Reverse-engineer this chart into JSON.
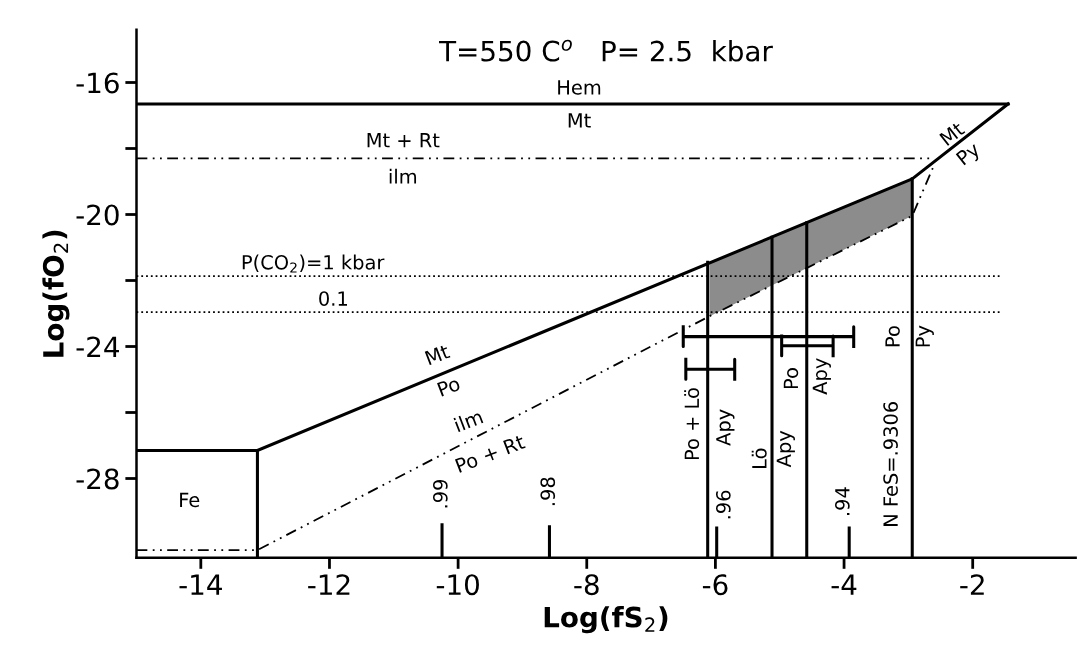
{
  "chart_data": {
    "type": "line",
    "title": "T=550 C$^{o}$   P= 2.5  kbar",
    "xlabel": "Log(fS$_{2}$)",
    "ylabel": "Log(fO$_{2}$)",
    "xlim": [
      -15,
      -0.4
    ],
    "ylim": [
      -30.4,
      -14.4
    ],
    "xticks": [
      -14,
      -12,
      -10,
      -8,
      -6,
      -4,
      -2
    ],
    "yticks": [
      -16,
      {
        "value": -18,
        "label": null
      },
      -20,
      {
        "value": -22,
        "label": null
      },
      -24,
      {
        "value": -26,
        "label": null
      },
      -28
    ],
    "grid": false,
    "legend": false,
    "series": [
      {
        "color": "#000000",
        "line_style": "solid",
        "x": [
          -15,
          -1.45
        ],
        "values": [
          -16.65,
          -16.65
        ]
      },
      {
        "color": "#000000",
        "line_style": "solid",
        "x": [
          -13.12,
          -2.94,
          -1.45
        ],
        "values": [
          -27.15,
          -18.92,
          -16.65
        ]
      },
      {
        "color": "#000000",
        "line_style": "solid",
        "x": [
          -15,
          -13.12,
          -13.12
        ],
        "values": [
          -27.15,
          -27.15,
          -30.4
        ]
      },
      {
        "color": "#000000",
        "line_style": "dashed",
        "x": [
          -15,
          -2.6
        ],
        "values": [
          -18.3,
          -18.3
        ]
      },
      {
        "color": "#000000",
        "line_style": "dashed",
        "x": [
          -15,
          -13.12,
          -6.09,
          -2.94,
          -2.6
        ],
        "values": [
          -30.17,
          -30.17,
          -23.08,
          -20.04,
          -18.5
        ],
        "lower": [
          null,
          null,
          -23.08,
          -20.04,
          null
        ],
        "upper": [
          null,
          null,
          -21.47,
          -18.92,
          null
        ]
      },
      {
        "color": "#000000",
        "line_style": "dotted",
        "x": [
          -15,
          -1.54
        ],
        "values": [
          -21.87,
          -21.87
        ]
      },
      {
        "color": "#000000",
        "line_style": "dotted",
        "x": [
          -15,
          -1.54
        ],
        "values": [
          -22.96,
          -22.96
        ]
      },
      {
        "color": "#000000",
        "line_style": "solid",
        "x": [
          -6.12,
          -6.12
        ],
        "values": [
          -30.4,
          -21.45
        ]
      },
      {
        "color": "#000000",
        "line_style": "solid",
        "x": [
          -5.12,
          -5.12
        ],
        "values": [
          -30.4,
          -20.69
        ]
      },
      {
        "color": "#000000",
        "line_style": "solid",
        "x": [
          -4.58,
          -4.58
        ],
        "values": [
          -30.4,
          -20.25
        ]
      },
      {
        "color": "#000000",
        "line_style": "solid",
        "x": [
          -2.94,
          -2.94
        ],
        "values": [
          -30.4,
          -18.92
        ]
      },
      {
        "color": "#000000",
        "line_style": "solid",
        "x": [
          -10.25,
          -10.25
        ],
        "values": [
          -30.4,
          -29.4
        ]
      },
      {
        "color": "#000000",
        "line_style": "solid",
        "x": [
          -8.58,
          -8.58
        ],
        "values": [
          -30.4,
          -29.46
        ]
      },
      {
        "color": "#000000",
        "line_style": "solid",
        "x": [
          -5.98,
          -5.98
        ],
        "values": [
          -30.4,
          -29.5
        ]
      },
      {
        "color": "#000000",
        "line_style": "solid",
        "x": [
          -3.92,
          -3.92
        ],
        "values": [
          -30.4,
          -29.5
        ]
      },
      {
        "color": "#000000",
        "line_style": "solid",
        "x": [
          -6.5,
          -6.5,
          -6.5,
          -3.85,
          -3.85,
          -3.85
        ],
        "values": [
          -23.4,
          -24.0,
          -23.7,
          -23.7,
          -23.4,
          -24.0
        ]
      },
      {
        "color": "#000000",
        "line_style": "solid",
        "x": [
          -6.46,
          -6.46,
          -6.46,
          -5.7,
          -5.7,
          -5.7
        ],
        "values": [
          -24.39,
          -24.99,
          -24.69,
          -24.69,
          -24.39,
          -24.99
        ]
      },
      {
        "color": "#000000",
        "line_style": "solid",
        "x": [
          -4.97,
          -4.97,
          -4.97,
          -4.17,
          -4.17,
          -4.17
        ],
        "values": [
          -23.68,
          -24.28,
          -23.98,
          -23.98,
          -23.68,
          -24.28
        ]
      }
    ],
    "annotations": [
      "Hem",
      "Mt",
      "Mt + Rt",
      "ilm",
      "P(CO$_{2}$)=1 kbar",
      "0.1",
      "Mt",
      "Po",
      "ilm",
      "Po + Rt",
      "Fe",
      "Mt",
      "Py",
      "Po",
      "Py",
      "N FeS=.9306",
      "Po + Lö",
      "Apy",
      "Lö",
      "Apy",
      "Po",
      "Apy",
      ".99",
      ".98",
      ".96",
      ".94"
    ]
  }
}
